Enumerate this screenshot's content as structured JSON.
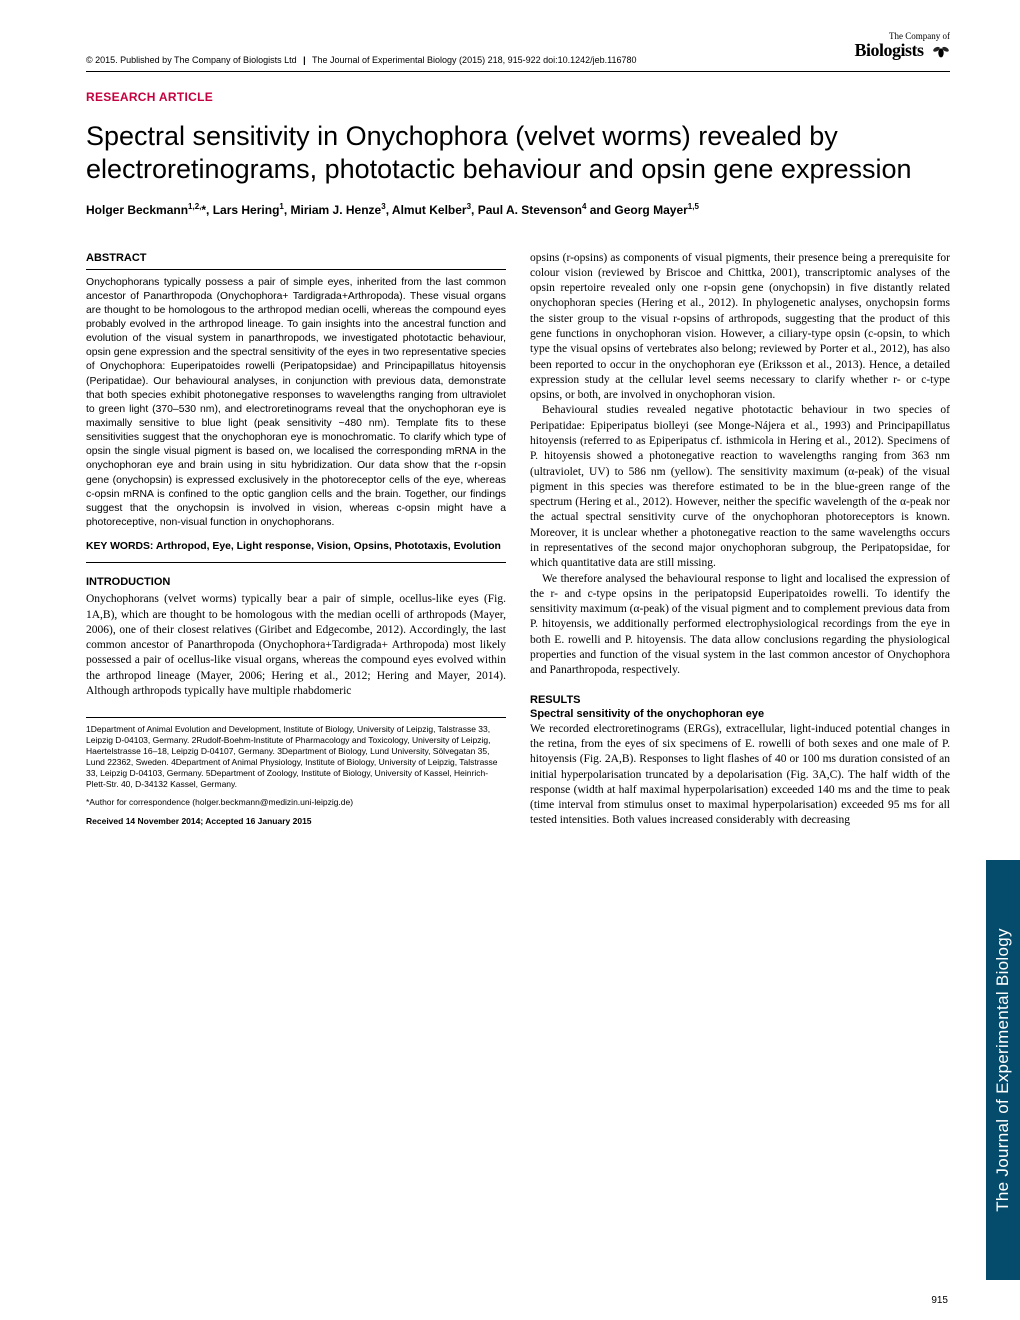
{
  "meta": {
    "copyright": "© 2015. Published by The Company of Biologists Ltd",
    "journal_ref": "The Journal of Experimental Biology (2015) 218, 915-922 doi:10.1242/jeb.116780",
    "publisher_top": "The Company of",
    "publisher_bottom": "Biologists"
  },
  "header": {
    "article_type": "RESEARCH ARTICLE",
    "title": "Spectral sensitivity in Onychophora (velvet worms) revealed by electroretinograms, phototactic behaviour and opsin gene expression",
    "authors_html": "Holger Beckmann<sup>1,2,</sup>*, Lars Hering<sup>1</sup>, Miriam J. Henze<sup>3</sup>, Almut Kelber<sup>3</sup>, Paul A. Stevenson<sup>4</sup> and Georg Mayer<sup>1,5</sup>"
  },
  "abstract": {
    "heading": "ABSTRACT",
    "text": "Onychophorans typically possess a pair of simple eyes, inherited from the last common ancestor of Panarthropoda (Onychophora+ Tardigrada+Arthropoda). These visual organs are thought to be homologous to the arthropod median ocelli, whereas the compound eyes probably evolved in the arthropod lineage. To gain insights into the ancestral function and evolution of the visual system in panarthropods, we investigated phototactic behaviour, opsin gene expression and the spectral sensitivity of the eyes in two representative species of Onychophora: Euperipatoides rowelli (Peripatopsidae) and Principapillatus hitoyensis (Peripatidae). Our behavioural analyses, in conjunction with previous data, demonstrate that both species exhibit photonegative responses to wavelengths ranging from ultraviolet to green light (370–530 nm), and electroretinograms reveal that the onychophoran eye is maximally sensitive to blue light (peak sensitivity ~480 nm). Template fits to these sensitivities suggest that the onychophoran eye is monochromatic. To clarify which type of opsin the single visual pigment is based on, we localised the corresponding mRNA in the onychophoran eye and brain using in situ hybridization. Our data show that the r-opsin gene (onychopsin) is expressed exclusively in the photoreceptor cells of the eye, whereas c-opsin mRNA is confined to the optic ganglion cells and the brain. Together, our findings suggest that the onychopsin is involved in vision, whereas c-opsin might have a photoreceptive, non-visual function in onychophorans.",
    "keywords": "KEY WORDS: Arthropod, Eye, Light response, Vision, Opsins, Phototaxis, Evolution"
  },
  "introduction": {
    "heading": "INTRODUCTION",
    "p1": "Onychophorans (velvet worms) typically bear a pair of simple, ocellus-like eyes (Fig. 1A,B), which are thought to be homologous with the median ocelli of arthropods (Mayer, 2006), one of their closest relatives (Giribet and Edgecombe, 2012). Accordingly, the last common ancestor of Panarthropoda (Onychophora+Tardigrada+ Arthropoda) most likely possessed a pair of ocellus-like visual organs, whereas the compound eyes evolved within the arthropod lineage (Mayer, 2006; Hering et al., 2012; Hering and Mayer, 2014). Although arthropods typically have multiple rhabdomeric"
  },
  "affiliations": {
    "text": "1Department of Animal Evolution and Development, Institute of Biology, University of Leipzig, Talstrasse 33, Leipzig D-04103, Germany. 2Rudolf-Boehm-Institute of Pharmacology and Toxicology, University of Leipzig, Haertelstrasse 16–18, Leipzig D-04107, Germany. 3Department of Biology, Lund University, Sölvegatan 35, Lund 22362, Sweden. 4Department of Animal Physiology, Institute of Biology, University of Leipzig, Talstrasse 33, Leipzig D-04103, Germany. 5Department of Zoology, Institute of Biology, University of Kassel, Heinrich-Plett-Str. 40, D-34132 Kassel, Germany.",
    "correspondence": "*Author for correspondence (holger.beckmann@medizin.uni-leipzig.de)",
    "dates": "Received 14 November 2014; Accepted 16 January 2015"
  },
  "col2": {
    "p1": "opsins (r-opsins) as components of visual pigments, their presence being a prerequisite for colour vision (reviewed by Briscoe and Chittka, 2001), transcriptomic analyses of the opsin repertoire revealed only one r-opsin gene (onychopsin) in five distantly related onychophoran species (Hering et al., 2012). In phylogenetic analyses, onychopsin forms the sister group to the visual r-opsins of arthropods, suggesting that the product of this gene functions in onychophoran vision. However, a ciliary-type opsin (c-opsin, to which type the visual opsins of vertebrates also belong; reviewed by Porter et al., 2012), has also been reported to occur in the onychophoran eye (Eriksson et al., 2013). Hence, a detailed expression study at the cellular level seems necessary to clarify whether r- or c-type opsins, or both, are involved in onychophoran vision.",
    "p2": "Behavioural studies revealed negative phototactic behaviour in two species of Peripatidae: Epiperipatus biolleyi (see Monge-Nájera et al., 1993) and Principapillatus hitoyensis (referred to as Epiperipatus cf. isthmicola in Hering et al., 2012). Specimens of P. hitoyensis showed a photonegative reaction to wavelengths ranging from 363 nm (ultraviolet, UV) to 586 nm (yellow). The sensitivity maximum (α-peak) of the visual pigment in this species was therefore estimated to be in the blue-green range of the spectrum (Hering et al., 2012). However, neither the specific wavelength of the α-peak nor the actual spectral sensitivity curve of the onychophoran photoreceptors is known. Moreover, it is unclear whether a photonegative reaction to the same wavelengths occurs in representatives of the second major onychophoran subgroup, the Peripatopsidae, for which quantitative data are still missing.",
    "p3": "We therefore analysed the behavioural response to light and localised the expression of the r- and c-type opsins in the peripatopsid Euperipatoides rowelli. To identify the sensitivity maximum (α-peak) of the visual pigment and to complement previous data from P. hitoyensis, we additionally performed electrophysiological recordings from the eye in both E. rowelli and P. hitoyensis. The data allow conclusions regarding the physiological properties and function of the visual system in the last common ancestor of Onychophora and Panarthropoda, respectively."
  },
  "results": {
    "heading": "RESULTS",
    "subheading": "Spectral sensitivity of the onychophoran eye",
    "p1": "We recorded electroretinograms (ERGs), extracellular, light-induced potential changes in the retina, from the eyes of six specimens of E. rowelli of both sexes and one male of P. hitoyensis (Fig. 2A,B). Responses to light flashes of 40 or 100 ms duration consisted of an initial hyperpolarisation truncated by a depolarisation (Fig. 3A,C). The half width of the response (width at half maximal hyperpolarisation) exceeded 140 ms and the time to peak (time interval from stimulus onset to maximal hyperpolarisation) exceeded 95 ms for all tested intensities. Both values increased considerably with decreasing"
  },
  "sidebar": {
    "label": "The Journal of Experimental Biology"
  },
  "page_number": "915",
  "colors": {
    "accent": "#c5003e",
    "sidebar_bg": "#054b6b",
    "text": "#000000",
    "background": "#ffffff"
  }
}
